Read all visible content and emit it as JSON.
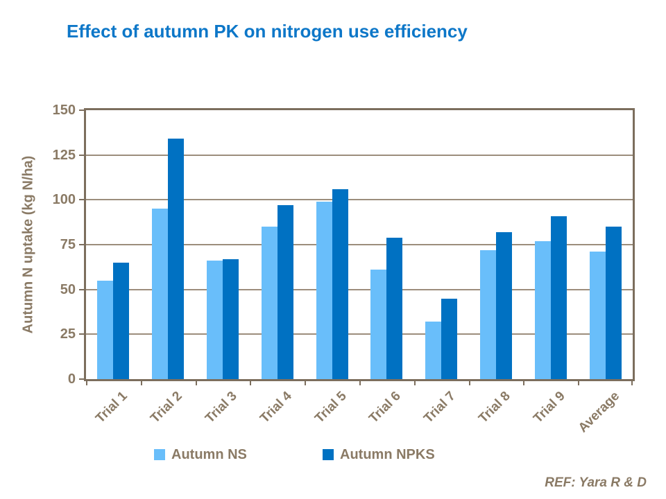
{
  "title": {
    "text": "Effect of autumn PK on nitrogen use efficiency",
    "color": "#0D77C8"
  },
  "chart_data": {
    "type": "bar",
    "categories": [
      "Trial 1",
      "Trial 2",
      "Trial 3",
      "Trial 4",
      "Trial 5",
      "Trial 6",
      "Trial 7",
      "Trial 8",
      "Trial 9",
      "Average"
    ],
    "series": [
      {
        "name": "Autumn NS",
        "color": "#69BEFA",
        "values": [
          55,
          95,
          66,
          85,
          99,
          61,
          32,
          72,
          77,
          71
        ]
      },
      {
        "name": "Autumn NPKS",
        "color": "#0071C2",
        "values": [
          65,
          134,
          67,
          97,
          106,
          79,
          45,
          82,
          91,
          85
        ]
      }
    ],
    "xlabel": "",
    "ylabel": "Autumn N uptake (kg N/ha)",
    "ylim": [
      0,
      150
    ],
    "yticks": [
      0,
      25,
      50,
      75,
      100,
      125,
      150
    ],
    "grid": true,
    "legend_position": "bottom",
    "axis_color": "#7C6E5D",
    "grid_color": "#9C8D7C",
    "text_color": "#8A7A65"
  },
  "footer": {
    "ref_label": "REF:  Yara R & D"
  }
}
